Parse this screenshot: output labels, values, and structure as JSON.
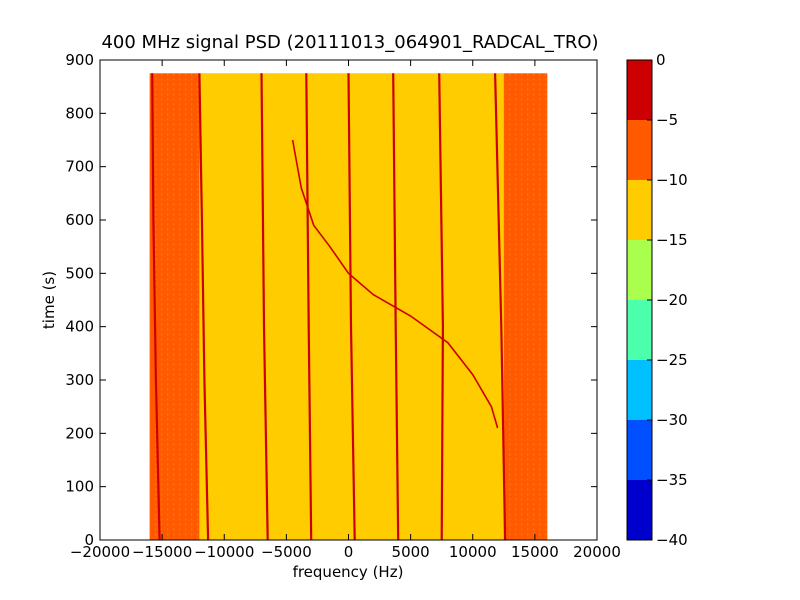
{
  "chart_data": {
    "type": "heatmap",
    "title": "400 MHz signal PSD (20111013_064901_RADCAL_TRO)",
    "xlabel": "frequency (Hz)",
    "ylabel": "time (s)",
    "xlim": [
      -20000,
      20000
    ],
    "ylim": [
      0,
      900
    ],
    "xticks": [
      -20000,
      -15000,
      -10000,
      -5000,
      0,
      5000,
      10000,
      15000,
      20000
    ],
    "xtick_labels": [
      "−20000",
      "−15000",
      "−10000",
      "−5000",
      "0",
      "5000",
      "10000",
      "15000",
      "20000"
    ],
    "yticks": [
      0,
      100,
      200,
      300,
      400,
      500,
      600,
      700,
      800,
      900
    ],
    "ytick_labels": [
      "0",
      "100",
      "200",
      "300",
      "400",
      "500",
      "600",
      "700",
      "800",
      "900"
    ],
    "data_extent": {
      "x": [
        -16000,
        16000
      ],
      "y": [
        0,
        875
      ]
    },
    "background_level": -15,
    "regions": [
      {
        "x": [
          -16000,
          -12000
        ],
        "y": [
          0,
          875
        ],
        "value": -10
      },
      {
        "x": [
          -12000,
          7500
        ],
        "y": [
          0,
          875
        ],
        "value": -15
      },
      {
        "x": [
          7500,
          12500
        ],
        "y": [
          0,
          875
        ],
        "value": -12.5
      },
      {
        "x": [
          12500,
          16000
        ],
        "y": [
          0,
          875
        ],
        "value": -10
      }
    ],
    "carrier_lines": [
      {
        "points": [
          [
            -15200,
            0
          ],
          [
            -15500,
            300
          ],
          [
            -15700,
            600
          ],
          [
            -15800,
            875
          ]
        ],
        "value": -2
      },
      {
        "points": [
          [
            -11300,
            0
          ],
          [
            -11600,
            300
          ],
          [
            -11800,
            600
          ],
          [
            -12000,
            875
          ]
        ],
        "value": -2
      },
      {
        "points": [
          [
            -6500,
            0
          ],
          [
            -6800,
            400
          ],
          [
            -7000,
            875
          ]
        ],
        "value": -2
      },
      {
        "points": [
          [
            -3000,
            0
          ],
          [
            -3200,
            400
          ],
          [
            -3400,
            875
          ]
        ],
        "value": -2
      },
      {
        "points": [
          [
            500,
            0
          ],
          [
            200,
            400
          ],
          [
            0,
            875
          ]
        ],
        "value": -2
      },
      {
        "points": [
          [
            4000,
            0
          ],
          [
            3800,
            400
          ],
          [
            3600,
            875
          ]
        ],
        "value": -2
      },
      {
        "points": [
          [
            7500,
            0
          ],
          [
            7600,
            400
          ],
          [
            7300,
            875
          ]
        ],
        "value": -2
      },
      {
        "points": [
          [
            12600,
            0
          ],
          [
            12300,
            400
          ],
          [
            11800,
            875
          ]
        ],
        "value": -2
      }
    ],
    "sweep_line": {
      "points": [
        [
          -4500,
          750
        ],
        [
          -3800,
          660
        ],
        [
          -2800,
          590
        ],
        [
          -1500,
          550
        ],
        [
          0,
          500
        ],
        [
          2000,
          460
        ],
        [
          5000,
          420
        ],
        [
          8000,
          370
        ],
        [
          10000,
          310
        ],
        [
          11500,
          250
        ],
        [
          12000,
          210
        ]
      ],
      "value": -2
    },
    "colorbar": {
      "range": [
        -40,
        0
      ],
      "ticks": [
        0,
        -5,
        -10,
        -15,
        -20,
        -25,
        -30,
        -35,
        -40
      ],
      "tick_labels": [
        "0",
        "−5",
        "−10",
        "−15",
        "−20",
        "−25",
        "−30",
        "−35",
        "−40"
      ],
      "levels": [
        {
          "from": -5,
          "to": 0,
          "color": "#cc0000"
        },
        {
          "from": -10,
          "to": -5,
          "color": "#ff5a00"
        },
        {
          "from": -15,
          "to": -10,
          "color": "#ffcc00"
        },
        {
          "from": -20,
          "to": -15,
          "color": "#aaff4c"
        },
        {
          "from": -25,
          "to": -20,
          "color": "#4cffaa"
        },
        {
          "from": -30,
          "to": -25,
          "color": "#00c0ff"
        },
        {
          "from": -35,
          "to": -30,
          "color": "#0050ff"
        },
        {
          "from": -40,
          "to": -35,
          "color": "#0000cc"
        }
      ]
    }
  }
}
